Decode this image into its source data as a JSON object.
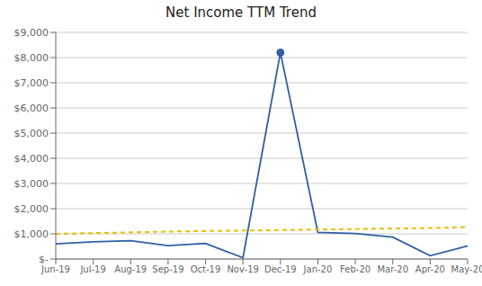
{
  "chart_data": {
    "type": "line",
    "title": "Net Income TTM Trend",
    "categories": [
      "Jun-19",
      "Jul-19",
      "Aug-19",
      "Sep-19",
      "Oct-19",
      "Nov-19",
      "Dec-19",
      "Jan-20",
      "Feb-20",
      "Mar-20",
      "Apr-20",
      "May-20"
    ],
    "series": [
      {
        "color": "#2E5FA3",
        "line_style": "solid",
        "values": [
          600,
          680,
          730,
          530,
          620,
          50,
          8200,
          1060,
          1010,
          870,
          130,
          520
        ]
      },
      {
        "color": "#E8C000",
        "line_style": "dashed",
        "values": [
          1000,
          1030,
          1060,
          1090,
          1110,
          1130,
          1150,
          1170,
          1190,
          1210,
          1230,
          1270
        ]
      }
    ],
    "ylim": [
      0,
      9000
    ],
    "yticks": [
      {
        "value": 0,
        "label": "$-"
      },
      {
        "value": 1000,
        "label": "$1,000"
      },
      {
        "value": 2000,
        "label": "$2,000"
      },
      {
        "value": 3000,
        "label": "$3,000"
      },
      {
        "value": 4000,
        "label": "$4,000"
      },
      {
        "value": 5000,
        "label": "$5,000"
      },
      {
        "value": 6000,
        "label": "$6,000"
      },
      {
        "value": 7000,
        "label": "$7,000"
      },
      {
        "value": 8000,
        "label": "$8,000"
      },
      {
        "value": 9000,
        "label": "$9,000"
      }
    ],
    "grid": true
  }
}
